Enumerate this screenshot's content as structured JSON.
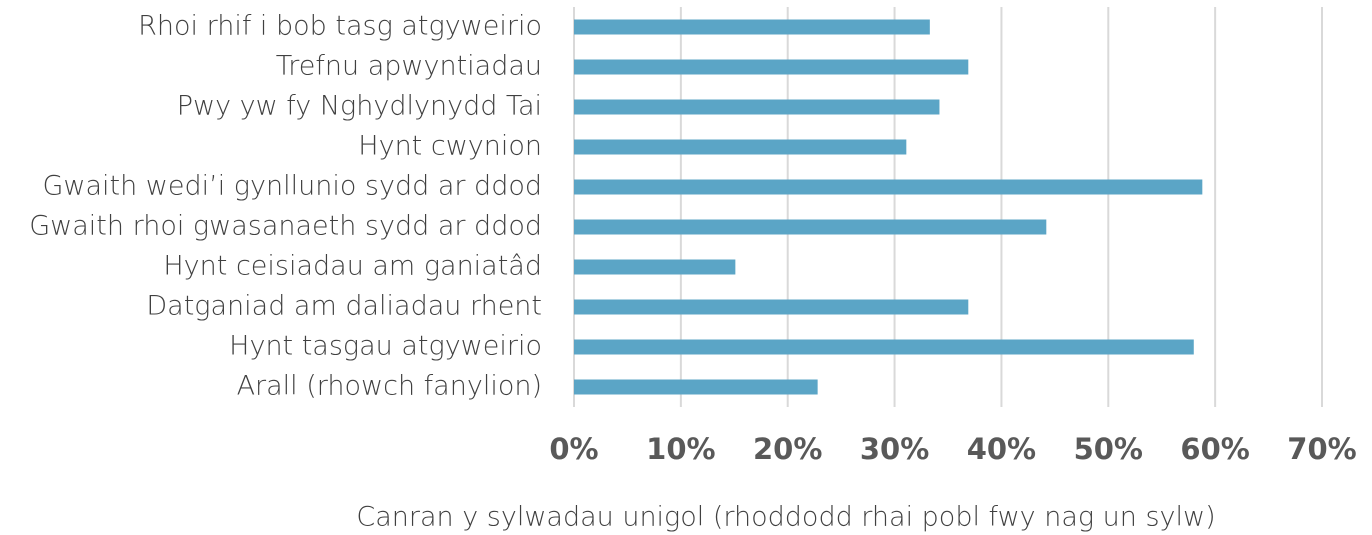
{
  "chart_data": {
    "type": "bar",
    "orientation": "horizontal",
    "categories": [
      "Rhoi rhif i bob tasg atgyweirio",
      "Trefnu apwyntiadau",
      "Pwy yw fy Nghydlynydd Tai",
      "Hynt cwynion",
      "Gwaith wedi’i gynllunio sydd ar ddod",
      "Gwaith rhoi gwasanaeth sydd ar ddod",
      "Hynt ceisiadau am ganiatâd",
      "Datganiad am daliadau rhent",
      "Hynt tasgau atgyweirio",
      "Arall (rhowch fanylion)"
    ],
    "values": [
      33.3,
      36.9,
      34.2,
      31.1,
      58.8,
      44.2,
      15.1,
      36.9,
      58.0,
      22.8
    ],
    "color": "#5ba5c6",
    "xlabel": "Canran y sylwadau unigol (rhoddodd rhai pobl fwy nag un sylw)",
    "xlim": [
      0,
      70
    ],
    "xticks": [
      {
        "value": 0,
        "label": "0%"
      },
      {
        "value": 10,
        "label": "10%"
      },
      {
        "value": 20,
        "label": "20%"
      },
      {
        "value": 30,
        "label": "30%"
      },
      {
        "value": 40,
        "label": "40%"
      },
      {
        "value": 50,
        "label": "50%"
      },
      {
        "value": 60,
        "label": "60%"
      },
      {
        "value": 70,
        "label": "70%"
      }
    ],
    "grid": true
  }
}
